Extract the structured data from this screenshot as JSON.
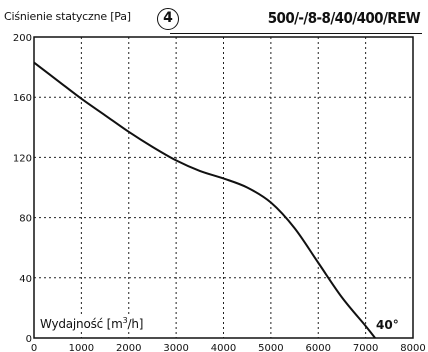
{
  "header": {
    "y_axis_title": "Ciśnienie statyczne [Pa]",
    "badge_number": "4",
    "model": "500/-/8-8/40/400/REW"
  },
  "x_axis": {
    "title_prefix": "Wydajność [m",
    "title_sup": "3",
    "title_suffix": "/h]"
  },
  "curve_label": "40°",
  "chart_data": {
    "type": "line",
    "title": "",
    "xlabel": "Wydajność [m3/h]",
    "ylabel": "Ciśnienie statyczne [Pa]",
    "xlim": [
      0,
      8000
    ],
    "ylim": [
      0,
      200
    ],
    "xticks": [
      0,
      1000,
      2000,
      3000,
      4000,
      5000,
      6000,
      7000,
      8000
    ],
    "yticks": [
      0,
      40,
      80,
      120,
      160,
      200
    ],
    "grid": true,
    "series": [
      {
        "name": "40°",
        "x": [
          0,
          500,
          1000,
          1500,
          2000,
          2500,
          3000,
          3500,
          4000,
          4500,
          5000,
          5500,
          6000,
          6500,
          7000,
          7200
        ],
        "y": [
          183,
          171,
          159,
          148,
          137,
          127,
          118,
          111,
          106,
          100,
          90,
          73,
          50,
          27,
          8,
          0
        ]
      }
    ]
  }
}
